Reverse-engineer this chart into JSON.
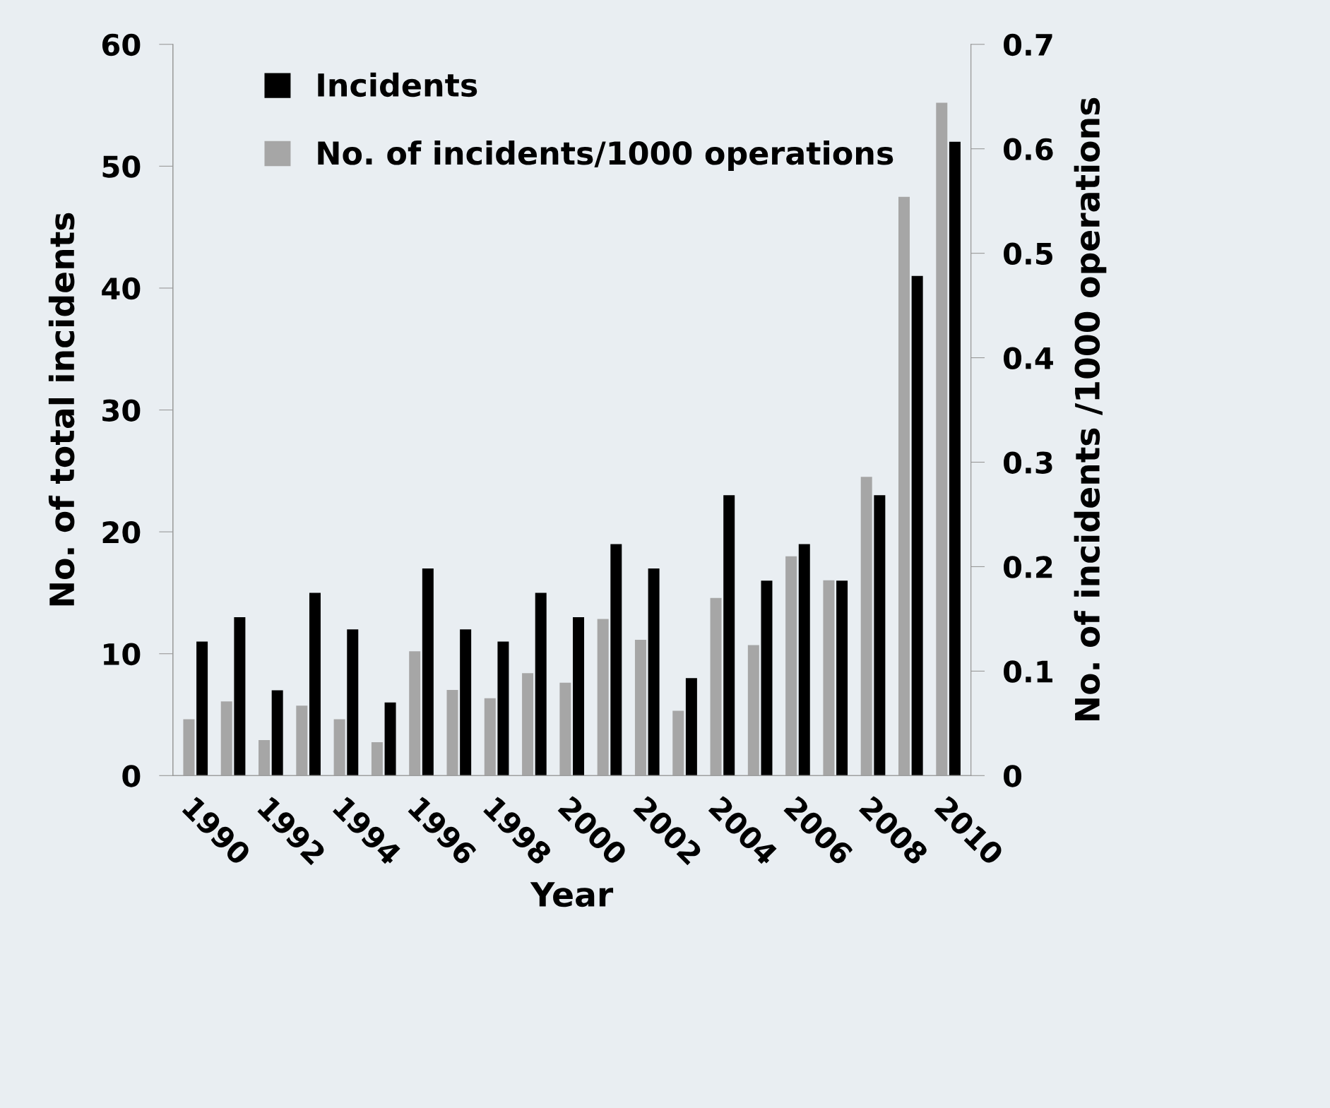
{
  "chart_data": {
    "type": "bar",
    "xlabel": "Year",
    "ylabel": "No. of total incidents",
    "y2label": "No. of incidents /1000 operations",
    "categories": [
      "1990",
      null,
      "1992",
      null,
      "1994",
      null,
      "1996",
      null,
      "1998",
      null,
      "2000",
      null,
      "2002",
      null,
      "2004",
      null,
      "2006",
      null,
      "2008",
      null,
      "2010"
    ],
    "series": [
      {
        "name": "No. of incidents/1000 operations",
        "color": "#a6a6a6",
        "axis": "y2",
        "values": [
          0.054,
          0.071,
          0.034,
          0.067,
          0.054,
          0.032,
          0.119,
          0.082,
          0.074,
          0.098,
          0.089,
          0.15,
          0.13,
          0.062,
          0.17,
          0.125,
          0.21,
          0.187,
          0.286,
          0.554,
          0.644
        ]
      },
      {
        "name": "Incidents",
        "color": "#000000",
        "values": [
          11,
          13,
          7,
          15,
          12,
          6,
          17,
          12,
          11,
          15,
          13,
          19,
          17,
          8,
          23,
          16,
          19,
          16,
          23,
          41,
          52
        ]
      }
    ],
    "ylim": [
      0,
      60
    ],
    "yticks": [
      0,
      10,
      20,
      30,
      40,
      50,
      60
    ],
    "y2lim": [
      0,
      0.7
    ],
    "y2ticks": [
      0,
      0.1,
      0.2,
      0.3,
      0.4,
      0.5,
      0.6,
      0.7
    ],
    "grid": false,
    "legend": "top left"
  }
}
